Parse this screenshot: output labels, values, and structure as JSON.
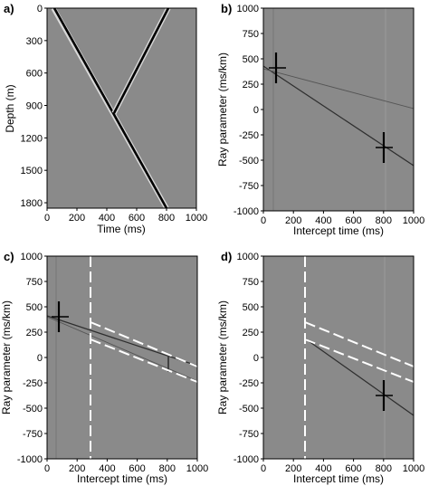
{
  "figure": {
    "panels": [
      {
        "id": "a",
        "letter": "a)",
        "chart_data": {
          "type": "line",
          "xlabel": "Time (ms)",
          "ylabel": "Depth (m)",
          "xlim": [
            0,
            1000
          ],
          "ylim": [
            0,
            1850
          ],
          "y_inverted": true,
          "x_ticks": [
            0,
            200,
            400,
            600,
            800,
            1000
          ],
          "y_ticks": [
            0,
            300,
            600,
            900,
            1200,
            1500,
            1800
          ],
          "series": [
            {
              "x": [
                60,
                780
              ],
              "y": [
                0,
                1850
              ]
            },
            {
              "x": [
                810,
                450
              ],
              "y": [
                0,
                920
              ]
            }
          ],
          "grid": false
        }
      },
      {
        "id": "b",
        "letter": "b)",
        "chart_data": {
          "type": "line",
          "xlabel": "Intercept time (ms)",
          "ylabel": "Ray parameter (ms/km)",
          "xlim": [
            0,
            1000
          ],
          "ylim": [
            -1000,
            1000
          ],
          "x_ticks": [
            0,
            200,
            400,
            600,
            800,
            1000
          ],
          "y_ticks": [
            1000,
            750,
            500,
            250,
            0,
            -250,
            -500,
            -750,
            -1000
          ],
          "series": [
            {
              "x": [
                0,
                1000
              ],
              "y": [
                430,
                -560
              ]
            },
            {
              "x": [
                0,
                1000
              ],
              "y": [
                400,
                10
              ]
            }
          ],
          "grid": false
        }
      },
      {
        "id": "c",
        "letter": "c)",
        "chart_data": {
          "type": "line",
          "xlabel": "Intercept time (ms)",
          "ylabel": "Ray parameter (ms/km)",
          "xlim": [
            0,
            1000
          ],
          "ylim": [
            -1000,
            1000
          ],
          "x_ticks": [
            0,
            200,
            400,
            600,
            800,
            1000
          ],
          "y_ticks": [
            1000,
            750,
            500,
            250,
            0,
            -250,
            -500,
            -750,
            -1000
          ],
          "series": [
            {
              "x": [
                0,
                1000
              ],
              "y": [
                400,
                -80
              ]
            },
            {
              "x": [
                0,
                1000
              ],
              "y": [
                390,
                -230
              ]
            }
          ],
          "grid": false
        }
      },
      {
        "id": "d",
        "letter": "d)",
        "chart_data": {
          "type": "line",
          "xlabel": "Intercept time (ms)",
          "ylabel": "Ray parameter (ms/km)",
          "xlim": [
            0,
            1000
          ],
          "ylim": [
            -1000,
            1000
          ],
          "x_ticks": [
            0,
            200,
            400,
            600,
            800,
            1000
          ],
          "y_ticks": [
            1000,
            750,
            500,
            250,
            0,
            -250,
            -500,
            -750,
            -1000
          ],
          "series": [
            {
              "x": [
                280,
                1000
              ],
              "y": [
                60,
                -520
              ]
            }
          ],
          "grid": false
        }
      }
    ]
  }
}
